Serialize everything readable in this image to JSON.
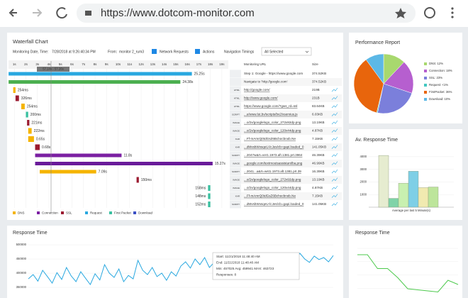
{
  "browser": {
    "url": "https://www.dotcom-monitor.com"
  },
  "waterfall": {
    "title": "Waterfall Chart",
    "date_label": "Monitoring Date, Time:",
    "date": "7/28/2018 at 9:26:40:34 PM",
    "from_label": "From:",
    "from": "monitor 2_rum3",
    "network_requests": "Network Requests",
    "actions": "Actions",
    "navigation_timings": "Navigation Timings",
    "select": "All Selected",
    "url_header": "Monitoring URL",
    "size_header": "Size",
    "cursor_label": "57.14s - 57.26s",
    "xlim": [
      0,
      19.5
    ],
    "xticks": [
      {
        "value": 1,
        "label": "1s"
      },
      {
        "value": 2,
        "label": "2s"
      },
      {
        "value": 3,
        "label": "3s"
      },
      {
        "value": 4,
        "label": "4s"
      },
      {
        "value": 5,
        "label": "5s"
      },
      {
        "value": 6,
        "label": "6s"
      },
      {
        "value": 7,
        "label": "7s"
      },
      {
        "value": 8,
        "label": "8s"
      },
      {
        "value": 9,
        "label": "9s"
      },
      {
        "value": 10,
        "label": "10s"
      },
      {
        "value": 11,
        "label": "11s"
      },
      {
        "value": 12,
        "label": "12s"
      },
      {
        "value": 13,
        "label": "13s"
      },
      {
        "value": 14,
        "label": "14s"
      },
      {
        "value": 15,
        "label": "15s"
      },
      {
        "value": 16,
        "label": "16s"
      },
      {
        "value": 17,
        "label": "17s"
      },
      {
        "value": 18,
        "label": "18s"
      },
      {
        "value": 19,
        "label": "19s"
      }
    ],
    "rows": [
      {
        "start": 0.5,
        "end": 16.4,
        "color": "#29a8e0",
        "label": "25.25s",
        "type": "",
        "url": "Step 1: Google - https://www.google.com",
        "url_color": "#1e6fd9",
        "size": "374.52KB"
      },
      {
        "start": 0.5,
        "end": 15.4,
        "color": "#4caf50",
        "label": "24.38s",
        "type": "",
        "url": "Navigate to 'http://google.com'",
        "url_color": "#3c9a3c",
        "size": "374.52KB"
      },
      {
        "start": 0.9,
        "end": 1.1,
        "color": "#f5b400",
        "label": "254ms",
        "type": "HTML",
        "url": "http://google.com/",
        "size": "219B"
      },
      {
        "start": 1.1,
        "end": 1.4,
        "color": "#9b1b30",
        "label": "326ms",
        "type": "HTML",
        "url": "http://www.google.com/",
        "size": "231B"
      },
      {
        "start": 1.6,
        "end": 1.9,
        "color": "#f5b400",
        "label": "254ms",
        "type": "HTML",
        "url": "https://www.google.com/?gws_rd=ssl",
        "size": "83.64KB"
      },
      {
        "start": 2.0,
        "end": 2.2,
        "color": "#39c0a0",
        "label": "200ms",
        "type": "SCRIPT",
        "url": "...e/www.lut.bv/scripts/bv2/xsemius.js",
        "size": "6.03KB"
      },
      {
        "start": 2.1,
        "end": 2.3,
        "color": "#9b1b30",
        "label": "221ms",
        "type": "IMAGE",
        "url": "...o/2x/googlelogo_color_272x92dp.png",
        "size": "13.19KB"
      },
      {
        "start": 2.2,
        "end": 2.5,
        "color": "#f5b400",
        "label": "222ms",
        "type": "IMAGE",
        "url": "...o/2x/googlelogo_color_120x44dp.png",
        "size": "4.87KB"
      },
      {
        "start": 2.2,
        "end": 2.7,
        "color": "#f5b400",
        "label": "0.65s",
        "type": "XHR",
        "url": "...Ff-mAmrQ0tdGsZ6Bchocbnob.Ne",
        "size": "7.15KB"
      },
      {
        "start": 2.8,
        "end": 3.2,
        "color": "#9b1b30",
        "label": "0.68s",
        "type": "XHR",
        "url": "...dMvsbWxsqeU-lcJes/cb=gapi.loaded_0",
        "size": "141.05KB"
      },
      {
        "start": 2.8,
        "end": 10.3,
        "color": "#7b1fa2",
        "label": "11.8s",
        "type": "SCRIPT",
        "url": "...2047w&rt=ver1.1973.aft.1381.prt.3964",
        "size": "46.39KB"
      },
      {
        "start": 2.8,
        "end": 18.2,
        "color": "#6a1b9a",
        "label": "15.27s",
        "type": "IMAGE",
        "url": "...google.com/textmoutsassistant/ba.png",
        "size": "46.99KB"
      },
      {
        "start": 3.2,
        "end": 8.1,
        "color": "#f5b400",
        "label": "7.09s",
        "type": "SCRIPT",
        "url": "...2041...a&rt=wst1.1973.aft.1381.prt.39",
        "size": "16.39KB"
      },
      {
        "start": 11.6,
        "end": 11.8,
        "color": "#9b1b30",
        "label": "150ms",
        "type": "IMAGE",
        "url": "...o/2x/googlelogo_color_272x92dp.png",
        "size": "13.19KB"
      },
      {
        "start": 17.8,
        "end": 18.0,
        "color": "#39c0a0",
        "label": "158ms",
        "type": "IMAGE",
        "url": "...o/2x/googlelogo_color_120x44dp.png",
        "size": "4.87KB"
      },
      {
        "start": 17.8,
        "end": 18.0,
        "color": "#39c0a0",
        "label": "148ms",
        "type": "XHR",
        "url": "...Ff-mAmrQ0tdGsZ6Bchocbnob.Ne",
        "size": "7.15KB"
      },
      {
        "start": 17.8,
        "end": 18.0,
        "color": "#39c0a0",
        "label": "152ms",
        "type": "SCRIPT",
        "url": "...dMvsbWxsqeU-lcJes/cb=gapi.loaded_0",
        "size": "141.05KB"
      }
    ],
    "legend": [
      {
        "name": "DNS",
        "color": "#f5b400"
      },
      {
        "name": "Connection",
        "color": "#7b1fa2"
      },
      {
        "name": "SSL",
        "color": "#9b1b30"
      },
      {
        "name": "Request",
        "color": "#29a8e0"
      },
      {
        "name": "First Packet",
        "color": "#39c0a0"
      },
      {
        "name": "Download",
        "color": "#3a4fc4"
      }
    ]
  },
  "performance_report": {
    "title": "Performance Report",
    "type": "pie",
    "segments": [
      {
        "name": "DNS: 12%",
        "value": 12,
        "color": "#a8d86e"
      },
      {
        "name": "Connection: 18%",
        "value": 18,
        "color": "#b65fcf"
      },
      {
        "name": "SSL: 23%",
        "value": 23,
        "color": "#7b7fdb"
      },
      {
        "name": "Request: <1%",
        "value": 0.5,
        "color": "#43c7c0"
      },
      {
        "name": "FirstPacket: 36%",
        "value": 36,
        "color": "#e8650c"
      },
      {
        "name": "Download: 10%",
        "value": 10,
        "color": "#5cb8e6"
      }
    ]
  },
  "avg_response": {
    "title": "Av. Response Time",
    "type": "bar",
    "xlabel": "Average per last 5 Minute(s)",
    "ylim": [
      0,
      4500
    ],
    "yticks": [
      1000,
      2000,
      3000,
      4000
    ],
    "values": [
      4100,
      700,
      1900,
      2850,
      1550,
      1600
    ],
    "colors": [
      "#e6ecd0",
      "#7fd3a8",
      "#c8f0b0",
      "#7ecfe6",
      "#f1eab0",
      "#bde59b"
    ]
  },
  "response_time": {
    "title": "Response Time",
    "type": "line",
    "color": "#29a8e0",
    "ylim": [
      300000,
      500000
    ],
    "yticks": [
      300000,
      350000,
      400000,
      450000,
      500000
    ],
    "values": [
      380000,
      395000,
      372000,
      410000,
      388000,
      365000,
      402000,
      378000,
      420000,
      390000,
      370000,
      405000,
      382000,
      360000,
      398000,
      376000,
      430000,
      400000,
      385000,
      415000,
      370000,
      392000,
      380000,
      445000,
      410000,
      395000,
      420000,
      388000,
      400000,
      375000,
      405000,
      390000,
      425000,
      440000,
      418000,
      450000,
      430000,
      455000,
      420000,
      438000,
      410000,
      445000,
      460000,
      432000,
      450000,
      420000,
      462000,
      440000,
      455000,
      435000,
      465000,
      448000,
      430000,
      458000,
      440000,
      462000,
      445000,
      470000,
      450000,
      438000,
      460000,
      448000,
      455000,
      440000,
      462000
    ],
    "tooltip": [
      "Start:    11/21/2018 11:48:40 AM",
      "End:      11/21/2018 11:48:40 AM",
      "Min: 457025  Avg: 459941  MAX: 463723",
      "Responses:  8"
    ]
  },
  "response_time_small": {
    "title": "Response Time",
    "type": "line",
    "color": "#4cc94c",
    "ylim": [
      0,
      100
    ],
    "values": [
      88,
      88,
      62,
      62,
      45,
      24,
      22,
      20,
      18,
      40,
      32
    ]
  }
}
